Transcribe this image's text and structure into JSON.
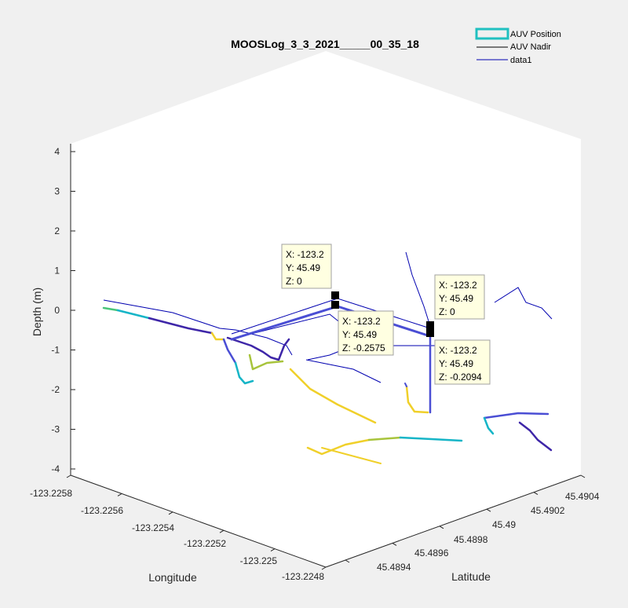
{
  "chart_data": {
    "type": "line",
    "title": "MOOSLog_3_3_2021_____00_35_18",
    "xlabel": "Longitude",
    "ylabel": "Latitude",
    "zlabel": "Depth (m)",
    "x_ticks": [
      "-123.2258",
      "-123.2256",
      "-123.2254",
      "-123.2252",
      "-123.225",
      "-123.2248"
    ],
    "y_ticks": [
      "45.4894",
      "45.4896",
      "45.4898",
      "45.49",
      "45.4902",
      "45.4904"
    ],
    "z_ticks": [
      "4",
      "3",
      "2",
      "1",
      "0",
      "-1",
      "-2",
      "-3",
      "-4"
    ],
    "zlim": [
      -4,
      4
    ],
    "grid": false,
    "legend_position": "top-right",
    "legend": [
      {
        "name": "AUV Position",
        "style": "filled-box",
        "color": "#20c0c0"
      },
      {
        "name": "AUV Nadir",
        "style": "line",
        "color": "#000000"
      },
      {
        "name": "data1",
        "style": "line",
        "color": "#0000b0"
      }
    ],
    "colormap": [
      "#3e26a8",
      "#4a4ed4",
      "#2c8ff2",
      "#16b5c7",
      "#4ac57a",
      "#a8c43c",
      "#f0d02a",
      "#f9fb15"
    ],
    "datatips": [
      {
        "x": "X: -123.2",
        "y": "Y: 45.49",
        "z": "Z: 0"
      },
      {
        "x": "X: -123.2",
        "y": "Y: 45.49",
        "z": "Z: -0.2575"
      },
      {
        "x": "X: -123.2",
        "y": "Y: 45.49",
        "z": "Z: 0"
      },
      {
        "x": "X: -123.2",
        "y": "Y: 45.49",
        "z": "Z: -0.2094"
      }
    ]
  },
  "colors": {
    "figure_background": "#f0f0f0",
    "axes_background": "#ffffff",
    "axis_line": "#262626",
    "nadir_line": "#0000b0",
    "datatip_fill": "#ffffe1"
  }
}
